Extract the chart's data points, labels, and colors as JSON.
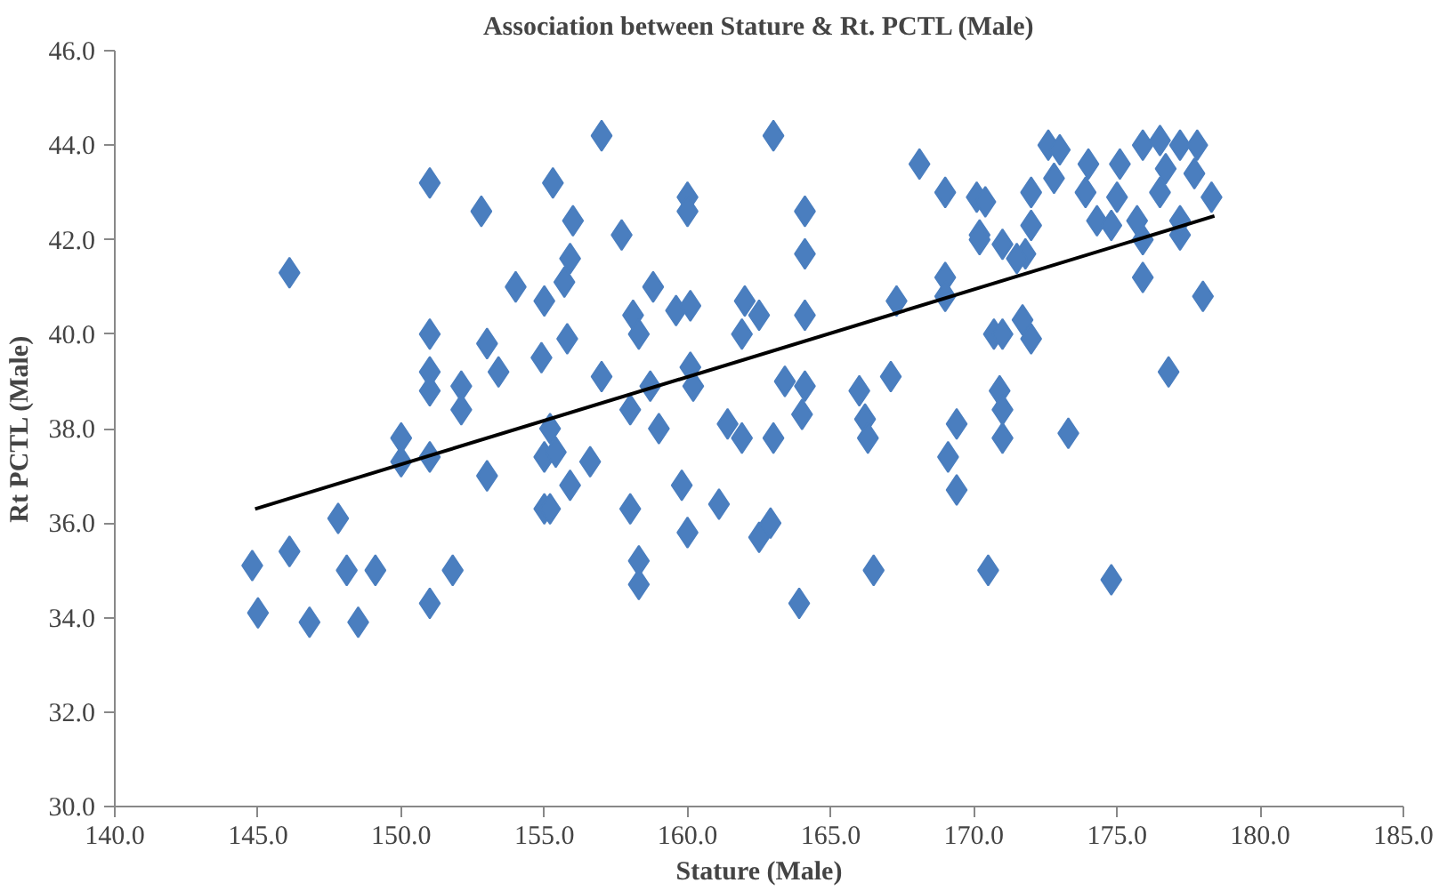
{
  "chart_data": {
    "type": "scatter",
    "title": "Association between Stature & Rt. PCTL (Male)",
    "xlabel": "Stature (Male)",
    "ylabel": "Rt PCTL (Male)",
    "xlim": [
      140,
      185
    ],
    "xticks": [
      {
        "value": 140,
        "label": "140.0"
      },
      {
        "value": 145,
        "label": "145.0"
      },
      {
        "value": 150,
        "label": "150.0"
      },
      {
        "value": 155,
        "label": "155.0"
      },
      {
        "value": 160,
        "label": "160.0"
      },
      {
        "value": 165,
        "label": "165.0"
      },
      {
        "value": 170,
        "label": "170.0"
      },
      {
        "value": 175,
        "label": "175.0"
      },
      {
        "value": 180,
        "label": "180.0"
      },
      {
        "value": 185,
        "label": "185.0"
      }
    ],
    "ylim": [
      30,
      46
    ],
    "yticks": [
      {
        "value": 30,
        "label": "30.0"
      },
      {
        "value": 32,
        "label": "32.0"
      },
      {
        "value": 34,
        "label": "34.0"
      },
      {
        "value": 36,
        "label": "36.0"
      },
      {
        "value": 38,
        "label": "38.0"
      },
      {
        "value": 40,
        "label": "40.0"
      },
      {
        "value": 42,
        "label": "42.0"
      },
      {
        "value": 44,
        "label": "44.0"
      },
      {
        "value": 46,
        "label": "46.0"
      }
    ],
    "grid": false,
    "series": [
      {
        "marker": "diamond",
        "color": "#4a7ebf",
        "x": [
          146.1,
          151.0,
          152.8,
          155.3,
          154.0,
          155.0,
          151.0,
          151.0,
          151.0,
          153.0,
          153.4,
          154.9,
          152.1,
          152.1,
          150.0,
          150.0,
          151.0,
          153.0,
          155.0,
          155.0,
          147.8,
          146.1,
          144.8,
          145.0,
          146.8,
          148.1,
          149.1,
          148.5,
          151.0,
          151.8,
          157.0,
          156.0,
          155.9,
          155.7,
          157.7,
          155.8,
          158.8,
          158.1,
          158.3,
          159.6,
          160.1,
          160.0,
          160.0,
          163.0,
          164.1,
          164.1,
          162.0,
          162.5,
          161.9,
          164.1,
          157.0,
          158.0,
          158.7,
          159.0,
          155.2,
          155.4,
          155.9,
          156.6,
          155.2,
          160.1,
          160.2,
          158.0,
          158.3,
          158.3,
          159.8,
          160.0,
          161.1,
          161.4,
          161.9,
          163.0,
          163.4,
          164.1,
          164.0,
          162.5,
          162.9,
          163.9,
          166.0,
          166.2,
          166.3,
          167.1,
          166.5,
          167.3,
          168.1,
          169.0,
          170.1,
          170.2,
          169.0,
          169.0,
          170.7,
          169.4,
          169.1,
          169.4,
          170.5,
          171.0,
          171.7,
          172.0,
          170.9,
          171.0,
          171.0,
          173.3,
          174.8,
          175.9,
          178.0,
          176.8,
          177.2,
          170.4,
          170.2,
          171.0,
          171.8,
          171.5,
          172.0,
          172.0,
          172.6,
          173.0,
          172.8,
          174.0,
          173.9,
          174.3,
          174.8,
          175.1,
          175.0,
          175.7,
          175.9,
          176.5,
          176.7,
          176.5,
          177.2,
          177.8,
          177.7,
          178.3,
          177.2,
          175.9
        ],
        "values": [
          41.3,
          43.2,
          42.6,
          43.2,
          41.0,
          40.7,
          40.0,
          39.2,
          38.8,
          39.8,
          39.2,
          39.5,
          38.9,
          38.4,
          37.8,
          37.3,
          37.4,
          37.0,
          37.4,
          36.3,
          36.1,
          35.4,
          35.1,
          34.1,
          33.9,
          35.0,
          35.0,
          33.9,
          34.3,
          35.0,
          44.2,
          42.4,
          41.6,
          41.1,
          42.1,
          39.9,
          41.0,
          40.4,
          40.0,
          40.5,
          40.6,
          42.9,
          42.6,
          44.2,
          42.6,
          41.7,
          40.7,
          40.4,
          40.0,
          40.4,
          39.1,
          38.4,
          38.9,
          38.0,
          38.0,
          37.5,
          36.8,
          37.3,
          36.3,
          39.3,
          38.9,
          36.3,
          35.2,
          34.7,
          36.8,
          35.8,
          36.4,
          38.1,
          37.8,
          37.8,
          39.0,
          38.9,
          38.3,
          35.7,
          36.0,
          34.3,
          38.8,
          38.2,
          37.8,
          39.1,
          35.0,
          40.7,
          43.6,
          43.0,
          42.9,
          42.1,
          41.2,
          40.8,
          40.0,
          38.1,
          37.4,
          36.7,
          35.0,
          40.0,
          40.3,
          39.9,
          38.8,
          38.4,
          37.8,
          37.9,
          34.8,
          41.2,
          40.8,
          39.2,
          42.1,
          42.8,
          42.0,
          41.9,
          41.7,
          41.6,
          42.3,
          43.0,
          44.0,
          43.9,
          43.3,
          43.6,
          43.0,
          42.4,
          42.3,
          43.6,
          42.9,
          42.4,
          44.0,
          44.1,
          43.5,
          43.0,
          44.0,
          44.0,
          43.4,
          42.9,
          42.4,
          42.0
        ]
      },
      {
        "type": "line",
        "marker": "none",
        "color": "#000000",
        "x": [
          144.9,
          178.4
        ],
        "values": [
          36.3,
          42.5
        ]
      }
    ]
  }
}
